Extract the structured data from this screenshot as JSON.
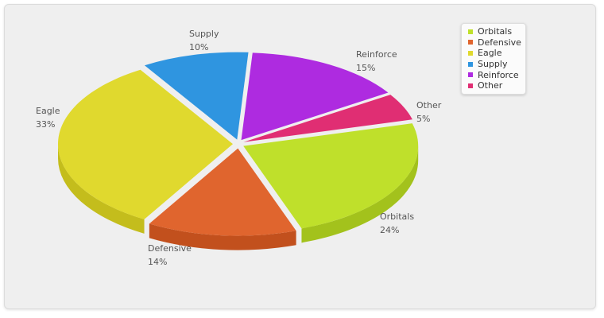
{
  "chart_data": {
    "type": "pie",
    "title": "",
    "legend_position": "top-right",
    "three_d": true,
    "series": [
      {
        "values": [
          24,
          14,
          33,
          10,
          15,
          5
        ],
        "categories": [
          "Orbitals",
          "Defensive",
          "Eagle",
          "Supply",
          "Reinforce",
          "Other"
        ]
      }
    ],
    "slices": [
      {
        "name": "Orbitals",
        "value": 24,
        "pct_label": "24%",
        "color": "#bfe02b",
        "side": "#a3c21c"
      },
      {
        "name": "Defensive",
        "value": 14,
        "pct_label": "14%",
        "color": "#e0652e",
        "side": "#c2501d"
      },
      {
        "name": "Eagle",
        "value": 33,
        "pct_label": "33%",
        "color": "#e0d92e",
        "side": "#c4bd1c"
      },
      {
        "name": "Supply",
        "value": 10,
        "pct_label": "10%",
        "color": "#2f95e0",
        "side": "#1e78bd"
      },
      {
        "name": "Reinforce",
        "value": 15,
        "pct_label": "15%",
        "color": "#ae2be0",
        "side": "#8e1cbf"
      },
      {
        "name": "Other",
        "value": 5,
        "pct_label": "5%",
        "color": "#e02e73",
        "side": "#bd1d5a"
      }
    ]
  }
}
